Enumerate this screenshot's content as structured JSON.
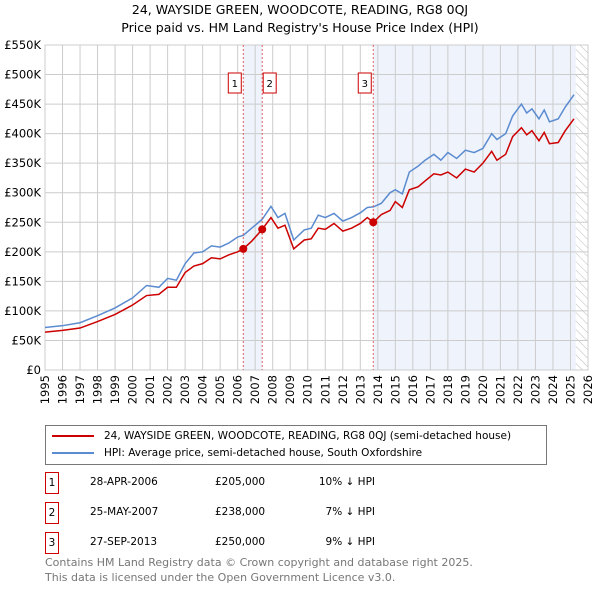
{
  "title": "24, WAYSIDE GREEN, WOODCOTE, READING, RG8 0QJ",
  "subtitle": "Price paid vs. HM Land Registry's House Price Index (HPI)",
  "chart_data": {
    "type": "line",
    "ylim": [
      0,
      550000
    ],
    "xlim": [
      1995,
      2026
    ],
    "yticks": [
      {
        "v": 0,
        "label": "£0"
      },
      {
        "v": 50000,
        "label": "£50K"
      },
      {
        "v": 100000,
        "label": "£100K"
      },
      {
        "v": 150000,
        "label": "£150K"
      },
      {
        "v": 200000,
        "label": "£200K"
      },
      {
        "v": 250000,
        "label": "£250K"
      },
      {
        "v": 300000,
        "label": "£300K"
      },
      {
        "v": 350000,
        "label": "£350K"
      },
      {
        "v": 400000,
        "label": "£400K"
      },
      {
        "v": 450000,
        "label": "£450K"
      },
      {
        "v": 500000,
        "label": "£500K"
      },
      {
        "v": 550000,
        "label": "£550K"
      }
    ],
    "xticks": [
      "1995",
      "1996",
      "1997",
      "1998",
      "1999",
      "2000",
      "2001",
      "2002",
      "2003",
      "2004",
      "2005",
      "2006",
      "2007",
      "2008",
      "2009",
      "2010",
      "2011",
      "2012",
      "2013",
      "2014",
      "2015",
      "2016",
      "2017",
      "2018",
      "2019",
      "2020",
      "2021",
      "2022",
      "2023",
      "2024",
      "2025",
      "2026"
    ],
    "series": [
      {
        "name": "24, WAYSIDE GREEN, WOODCOTE, READING, RG8 0QJ (semi-detached house)",
        "color": "#cc0000",
        "points": [
          [
            1995,
            64000
          ],
          [
            1996,
            67000
          ],
          [
            1997,
            71000
          ],
          [
            1998,
            82000
          ],
          [
            1999,
            94000
          ],
          [
            2000,
            110000
          ],
          [
            2000.8,
            126000
          ],
          [
            2001.5,
            128000
          ],
          [
            2002,
            140000
          ],
          [
            2002.5,
            140000
          ],
          [
            2003,
            165000
          ],
          [
            2003.5,
            176000
          ],
          [
            2004,
            180000
          ],
          [
            2004.5,
            190000
          ],
          [
            2005,
            188000
          ],
          [
            2005.5,
            195000
          ],
          [
            2006,
            200000
          ],
          [
            2006.32,
            205000
          ],
          [
            2006.8,
            218000
          ],
          [
            2007.4,
            238000
          ],
          [
            2007.9,
            258000
          ],
          [
            2008.3,
            240000
          ],
          [
            2008.7,
            245000
          ],
          [
            2009.2,
            205000
          ],
          [
            2009.8,
            220000
          ],
          [
            2010.2,
            222000
          ],
          [
            2010.6,
            240000
          ],
          [
            2011,
            238000
          ],
          [
            2011.5,
            248000
          ],
          [
            2012,
            235000
          ],
          [
            2012.5,
            240000
          ],
          [
            2013,
            248000
          ],
          [
            2013.4,
            258000
          ],
          [
            2013.74,
            250000
          ],
          [
            2014.2,
            263000
          ],
          [
            2014.7,
            270000
          ],
          [
            2015,
            285000
          ],
          [
            2015.4,
            275000
          ],
          [
            2015.8,
            305000
          ],
          [
            2016.3,
            310000
          ],
          [
            2016.7,
            320000
          ],
          [
            2017.2,
            332000
          ],
          [
            2017.6,
            330000
          ],
          [
            2018,
            335000
          ],
          [
            2018.5,
            325000
          ],
          [
            2019,
            340000
          ],
          [
            2019.5,
            335000
          ],
          [
            2020,
            350000
          ],
          [
            2020.5,
            370000
          ],
          [
            2020.8,
            355000
          ],
          [
            2021.3,
            365000
          ],
          [
            2021.7,
            395000
          ],
          [
            2022.2,
            410000
          ],
          [
            2022.5,
            398000
          ],
          [
            2022.8,
            405000
          ],
          [
            2023.2,
            388000
          ],
          [
            2023.5,
            402000
          ],
          [
            2023.8,
            383000
          ],
          [
            2024.3,
            385000
          ],
          [
            2024.7,
            405000
          ],
          [
            2025.2,
            425000
          ]
        ]
      },
      {
        "name": "HPI: Average price, semi-detached house, South Oxfordshire",
        "color": "#5b8bd0",
        "points": [
          [
            1995,
            72000
          ],
          [
            1996,
            75000
          ],
          [
            1997,
            80000
          ],
          [
            1998,
            92000
          ],
          [
            1999,
            105000
          ],
          [
            2000,
            122000
          ],
          [
            2000.8,
            143000
          ],
          [
            2001.5,
            140000
          ],
          [
            2002,
            155000
          ],
          [
            2002.5,
            152000
          ],
          [
            2003,
            180000
          ],
          [
            2003.5,
            198000
          ],
          [
            2004,
            200000
          ],
          [
            2004.5,
            210000
          ],
          [
            2005,
            208000
          ],
          [
            2005.5,
            215000
          ],
          [
            2006,
            225000
          ],
          [
            2006.32,
            228000
          ],
          [
            2006.8,
            240000
          ],
          [
            2007.4,
            255000
          ],
          [
            2007.9,
            277000
          ],
          [
            2008.3,
            258000
          ],
          [
            2008.7,
            265000
          ],
          [
            2009.2,
            220000
          ],
          [
            2009.8,
            237000
          ],
          [
            2010.2,
            240000
          ],
          [
            2010.6,
            262000
          ],
          [
            2011,
            258000
          ],
          [
            2011.5,
            265000
          ],
          [
            2012,
            252000
          ],
          [
            2012.5,
            258000
          ],
          [
            2013,
            266000
          ],
          [
            2013.4,
            275000
          ],
          [
            2013.74,
            276000
          ],
          [
            2014.2,
            282000
          ],
          [
            2014.7,
            300000
          ],
          [
            2015,
            305000
          ],
          [
            2015.4,
            298000
          ],
          [
            2015.8,
            335000
          ],
          [
            2016.3,
            345000
          ],
          [
            2016.7,
            355000
          ],
          [
            2017.2,
            365000
          ],
          [
            2017.6,
            355000
          ],
          [
            2018,
            368000
          ],
          [
            2018.5,
            358000
          ],
          [
            2019,
            372000
          ],
          [
            2019.5,
            368000
          ],
          [
            2020,
            375000
          ],
          [
            2020.5,
            400000
          ],
          [
            2020.8,
            390000
          ],
          [
            2021.3,
            400000
          ],
          [
            2021.7,
            430000
          ],
          [
            2022.2,
            450000
          ],
          [
            2022.5,
            435000
          ],
          [
            2022.8,
            442000
          ],
          [
            2023.2,
            425000
          ],
          [
            2023.5,
            440000
          ],
          [
            2023.8,
            420000
          ],
          [
            2024.3,
            425000
          ],
          [
            2024.7,
            445000
          ],
          [
            2025.2,
            466000
          ]
        ]
      }
    ],
    "sales": [
      {
        "id": "1",
        "x": 2006.32,
        "y": 205000
      },
      {
        "id": "2",
        "x": 2007.4,
        "y": 238000
      },
      {
        "id": "3",
        "x": 2013.74,
        "y": 250000
      }
    ],
    "shaded": [
      [
        2006.32,
        2007.4
      ],
      [
        2013.74,
        2025.3
      ]
    ],
    "forecast_from": 2025.3
  },
  "legend": {
    "red": "24, WAYSIDE GREEN, WOODCOTE, READING, RG8 0QJ (semi-detached house)",
    "blue": "HPI: Average price, semi-detached house, South Oxfordshire"
  },
  "table": [
    {
      "id": "1",
      "date": "28-APR-2006",
      "price": "£205,000",
      "hpi": "10% ↓ HPI"
    },
    {
      "id": "2",
      "date": "25-MAY-2007",
      "price": "£238,000",
      "hpi": "7% ↓ HPI"
    },
    {
      "id": "3",
      "date": "27-SEP-2013",
      "price": "£250,000",
      "hpi": "9% ↓ HPI"
    }
  ],
  "footer": [
    "Contains HM Land Registry data © Crown copyright and database right 2025.",
    "This data is licensed under the Open Government Licence v3.0."
  ]
}
